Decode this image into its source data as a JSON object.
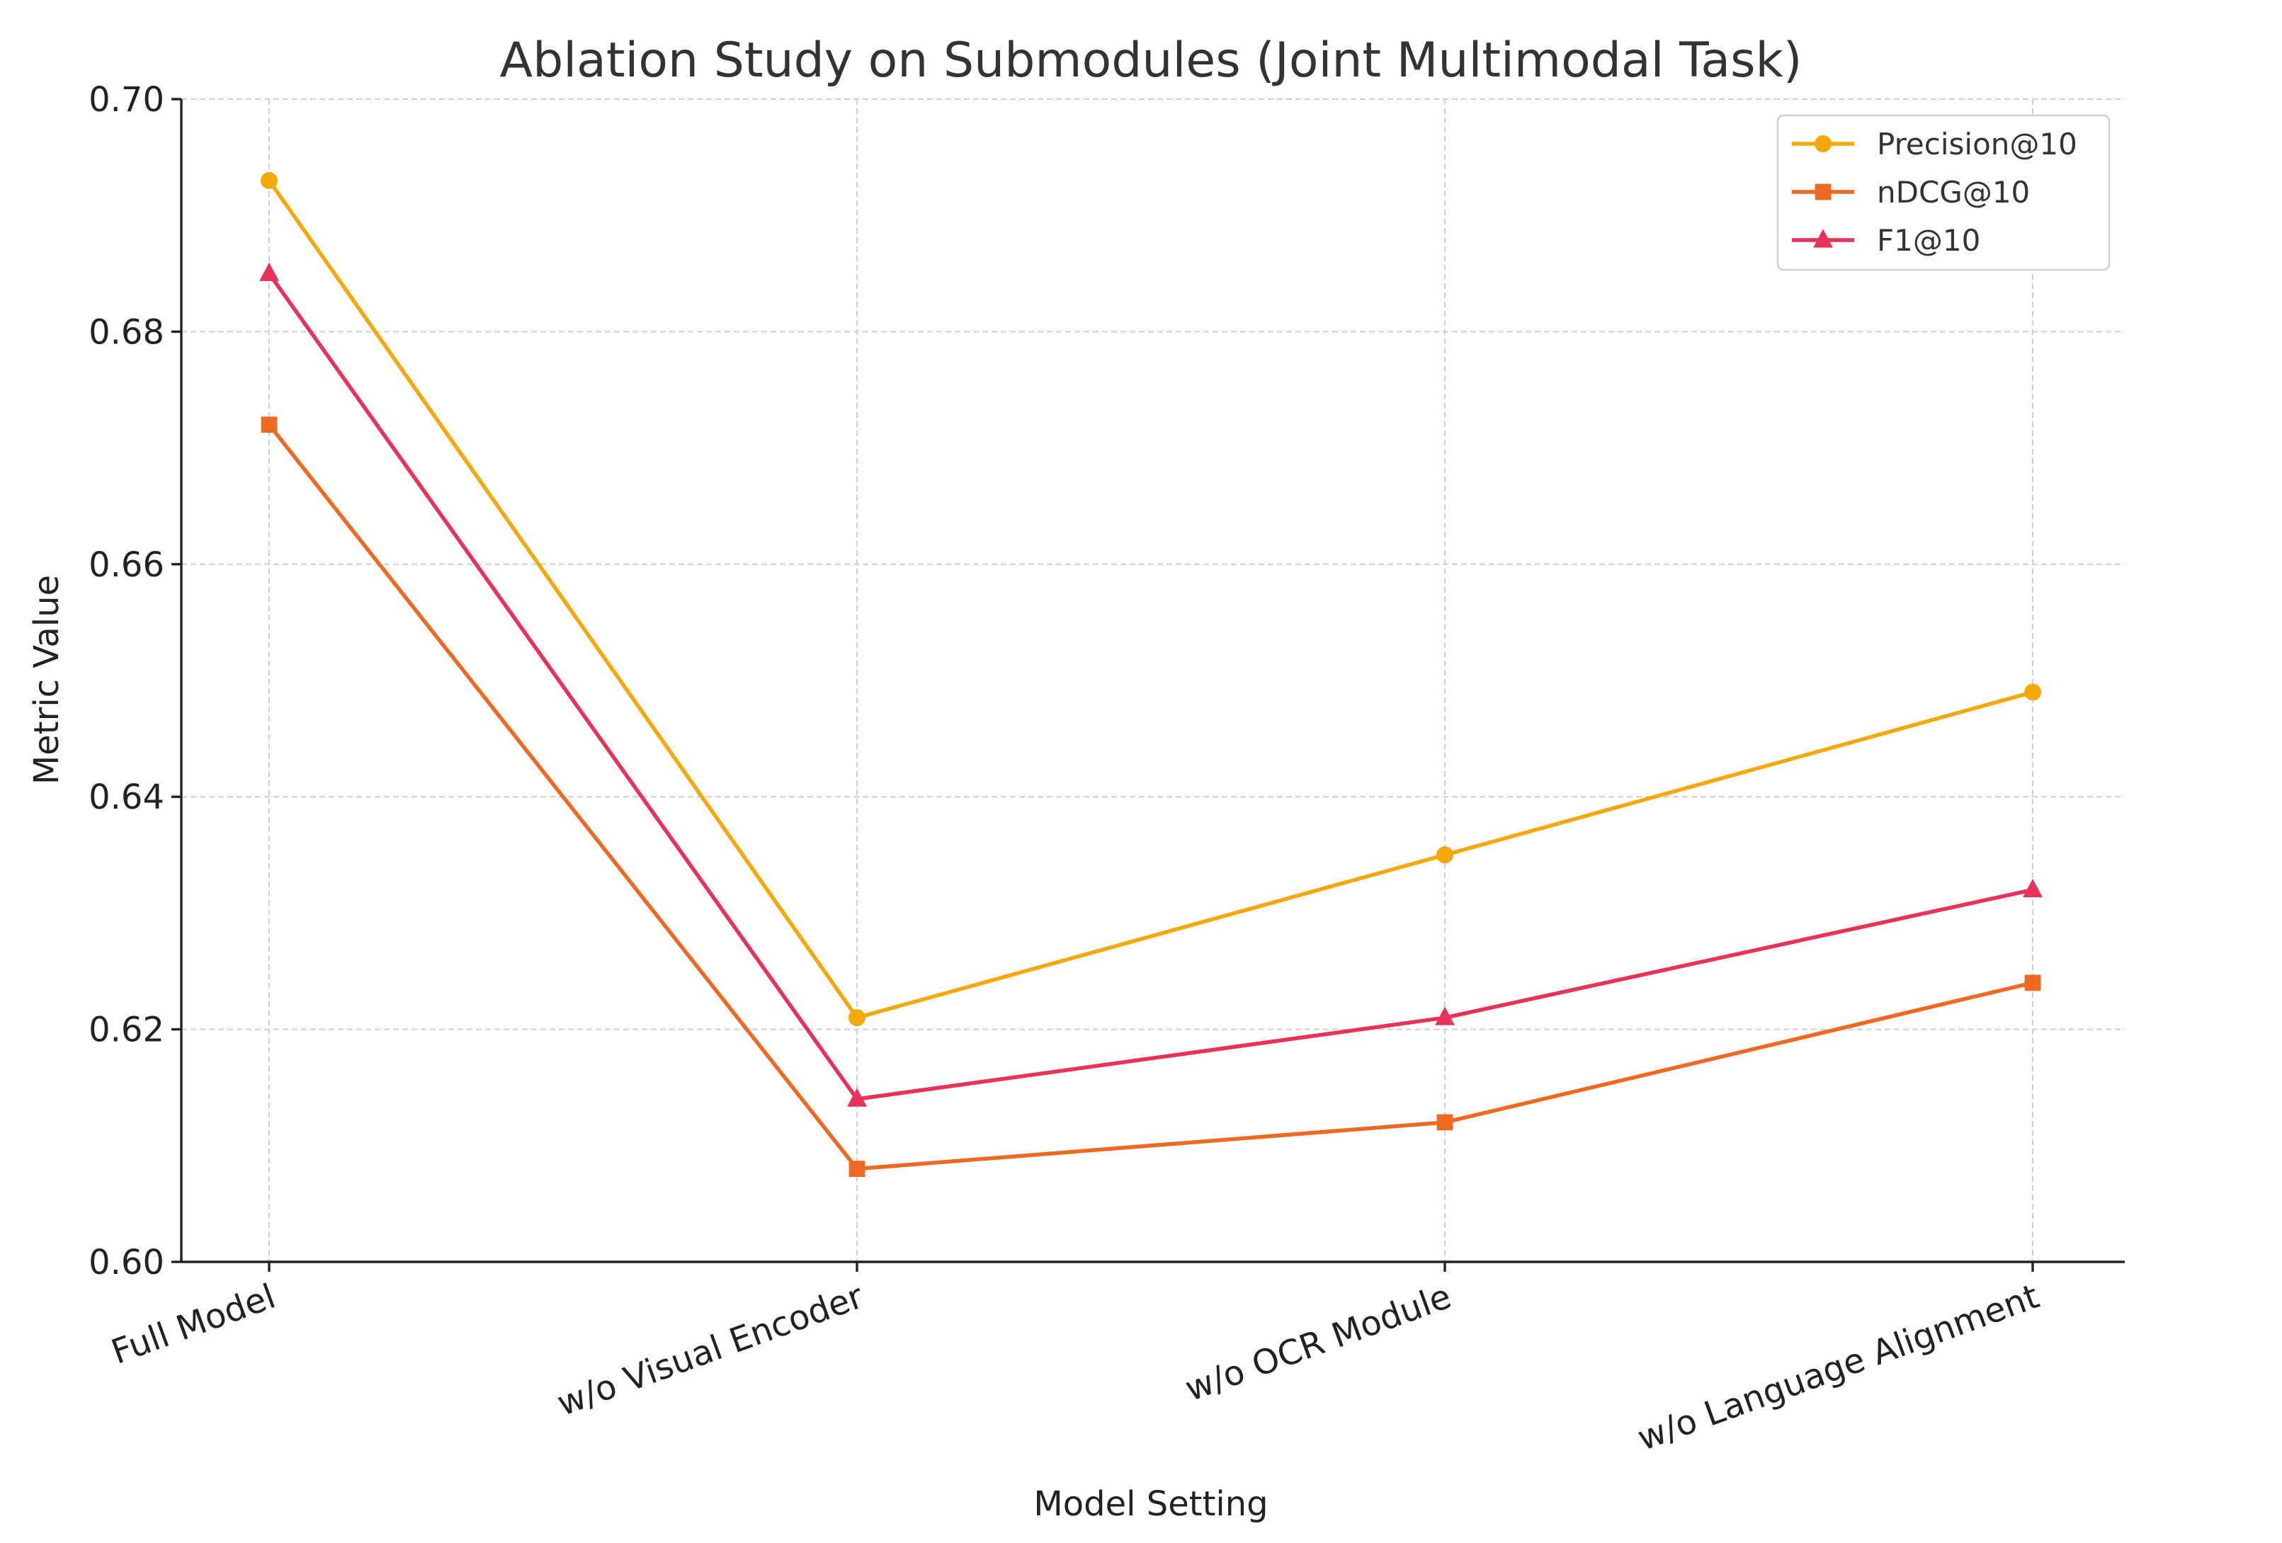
{
  "chart_data": {
    "type": "line",
    "title": "Ablation Study on Submodules (Joint Multimodal Task)",
    "xlabel": "Model Setting",
    "ylabel": "Metric Value",
    "categories": [
      "Full Model",
      "w/o Visual Encoder",
      "w/o OCR Module",
      "w/o Language Alignment"
    ],
    "ylim": [
      0.6,
      0.7
    ],
    "yticks": [
      "0.60",
      "0.62",
      "0.64",
      "0.66",
      "0.68",
      "0.70"
    ],
    "grid": true,
    "legend_position": "top-right",
    "series": [
      {
        "name": "Precision@10",
        "values": [
          0.693,
          0.621,
          0.635,
          0.649
        ],
        "color": "#F5A80A",
        "marker": "circle"
      },
      {
        "name": "nDCG@10",
        "values": [
          0.672,
          0.608,
          0.612,
          0.624
        ],
        "color": "#EE6A22",
        "marker": "square"
      },
      {
        "name": "F1@10",
        "values": [
          0.685,
          0.614,
          0.621,
          0.632
        ],
        "color": "#E8325A",
        "marker": "triangle"
      }
    ]
  }
}
